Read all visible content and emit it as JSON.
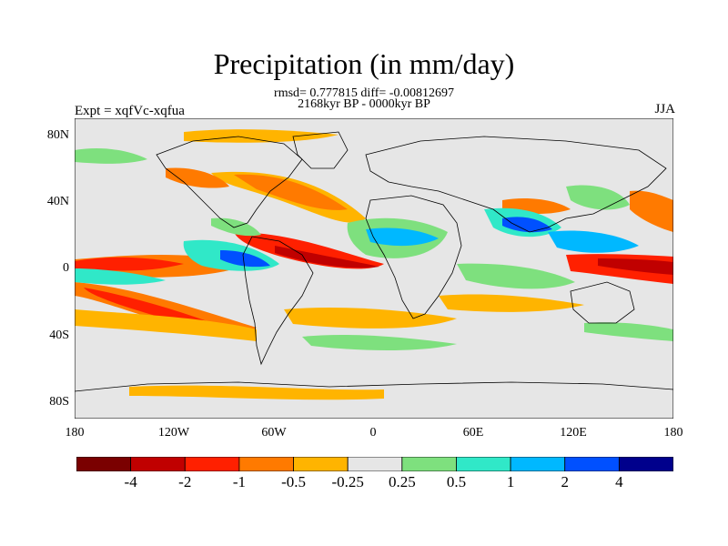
{
  "title": "Precipitation (in mm/day)",
  "stats": "rmsd= 0.777815 diff= -0.00812697",
  "period": "2168kyr BP - 0000kyr BP",
  "experiment": "Expt = xqfVc-xqfua",
  "season": "JJA",
  "lat_ticks": [
    "80N",
    "40N",
    "0",
    "40S",
    "80S"
  ],
  "lon_ticks": [
    "180",
    "120W",
    "60W",
    "0",
    "60E",
    "120E",
    "180"
  ],
  "colorbar": {
    "labels": [
      "-4",
      "-2",
      "-1",
      "-0.5",
      "-0.25",
      "0.25",
      "0.5",
      "1",
      "2",
      "4"
    ],
    "colors": [
      "#7a0000",
      "#c00000",
      "#ff2000",
      "#ff7a00",
      "#ffb400",
      "#e6e6e6",
      "#7ee07e",
      "#30e8c8",
      "#00b8ff",
      "#0050ff",
      "#00008c"
    ]
  },
  "colors": {
    "background_field": "#e6e6e6",
    "coastline": "#000000"
  }
}
